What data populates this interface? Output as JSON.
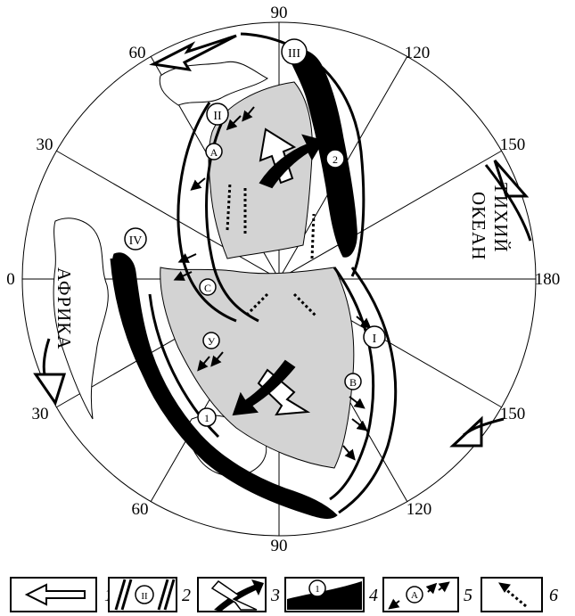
{
  "map": {
    "degree_labels": {
      "top": "90",
      "bottom": "90",
      "left": "0",
      "right": "180",
      "upper_left_60": "60",
      "upper_left_30": "30",
      "lower_left_30": "30",
      "lower_left_60": "60",
      "upper_right_120": "120",
      "upper_right_150": "150",
      "lower_right_150": "150",
      "lower_right_120": "120"
    },
    "regions": {
      "africa": "АФРИКА",
      "pacific_1": "ТИХИЙ",
      "pacific_2": "ОКЕАН"
    },
    "belt_labels": {
      "belt_I": "I",
      "belt_II": "II",
      "belt_III": "III",
      "belt_IV": "IV"
    },
    "zone_labels": {
      "zone_1": "1",
      "zone_2": "2"
    },
    "point_labels": {
      "A": "А",
      "B": "В",
      "C": "С",
      "U": "У"
    }
  },
  "legend": {
    "items": [
      {
        "icon": "open-arrow-icon",
        "number": "1"
      },
      {
        "icon": "belt-lines-icon",
        "number": "2",
        "badge": "II"
      },
      {
        "icon": "crossed-arrows-icon",
        "number": "3"
      },
      {
        "icon": "black-zone-icon",
        "number": "4",
        "badge": "1"
      },
      {
        "icon": "small-arrows-icon",
        "number": "5",
        "badge": "А"
      },
      {
        "icon": "dashed-arrow-icon",
        "number": "6"
      }
    ]
  },
  "colors": {
    "ink": "#000000",
    "shade": "#d3d3d3",
    "paper": "#ffffff"
  }
}
